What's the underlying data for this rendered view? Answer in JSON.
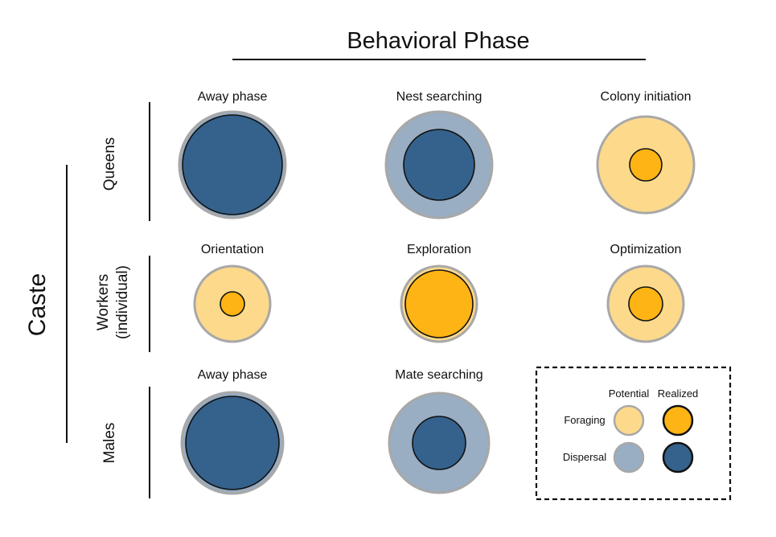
{
  "header": {
    "title": "Behavioral Phase"
  },
  "axis": {
    "title": "Caste"
  },
  "colors": {
    "foraging_potential": "#fdd98c",
    "foraging_realized": "#fdb414",
    "dispersal_potential": "#99adc3",
    "dispersal_realized": "#35628c",
    "potential_border": "#a8a8a8",
    "realized_border": "#111111"
  },
  "rows": [
    {
      "caste_lines": [
        "Queens"
      ],
      "cells": [
        {
          "label": "Away phase",
          "type": "dispersal",
          "realized_ratio": 0.94
        },
        {
          "label": "Nest searching",
          "type": "dispersal",
          "realized_ratio": 0.67
        },
        {
          "label": "Colony initiation",
          "type": "foraging",
          "realized_ratio": 0.33
        }
      ]
    },
    {
      "caste_lines": [
        "Workers",
        "(individual)"
      ],
      "cells": [
        {
          "label": "Orientation",
          "type": "foraging",
          "realized_ratio": 0.33
        },
        {
          "label": "Exploration",
          "type": "foraging",
          "realized_ratio": 0.9
        },
        {
          "label": "Optimization",
          "type": "foraging",
          "realized_ratio": 0.45
        }
      ]
    },
    {
      "caste_lines": [
        "Males"
      ],
      "cells": [
        {
          "label": "Away phase",
          "type": "dispersal",
          "realized_ratio": 0.93
        },
        {
          "label": "Mate searching",
          "type": "dispersal",
          "realized_ratio": 0.53
        }
      ]
    }
  ],
  "legend": {
    "col_potential": "Potential",
    "col_realized": "Realized",
    "row_foraging": "Foraging",
    "row_dispersal": "Dispersal"
  }
}
